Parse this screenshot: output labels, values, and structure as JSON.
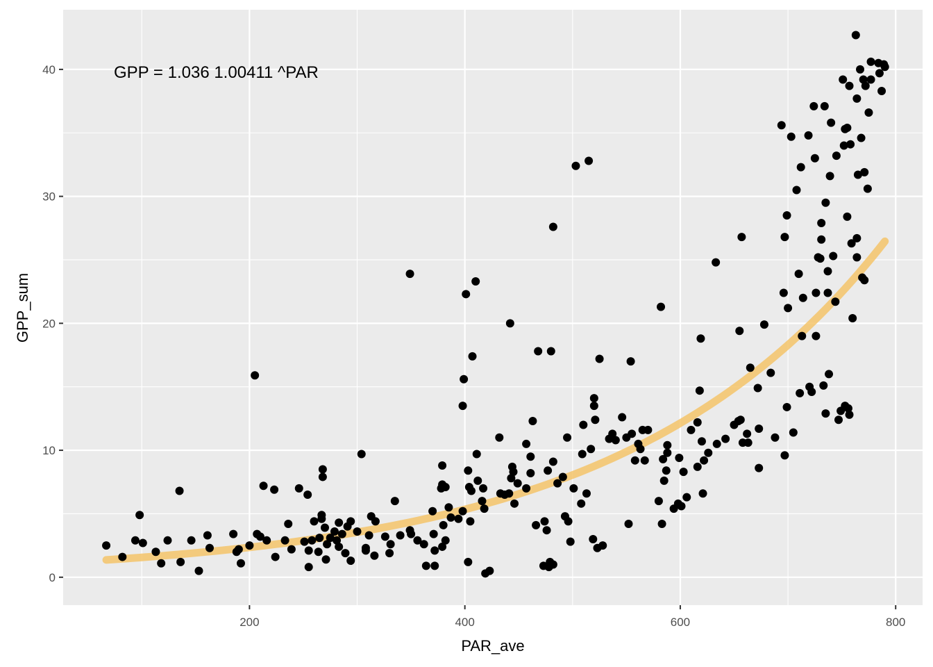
{
  "chart_data": {
    "type": "scatter",
    "xlabel": "PAR_ave",
    "ylabel": "GPP_sum",
    "annotation": "GPP =  1.036 1.00411 ^PAR",
    "xlim": [
      27,
      825
    ],
    "ylim": [
      -2.2,
      44.7
    ],
    "x_ticks": [
      200,
      400,
      600,
      800
    ],
    "x_tick_labels": [
      "200",
      "400",
      "600",
      "800"
    ],
    "y_ticks": [
      0,
      10,
      20,
      30,
      40
    ],
    "y_tick_labels": [
      "0",
      "10",
      "20",
      "30",
      "40"
    ],
    "grid": true,
    "colors": {
      "panel": "#ebebeb",
      "grid_major": "#ffffff",
      "points": "#000000",
      "fit_line": "#f5c46a"
    },
    "fit": {
      "a": 1.036,
      "b": 1.00411,
      "x_range": [
        67,
        790
      ]
    },
    "points": [
      [
        67,
        2.5
      ],
      [
        82,
        1.6
      ],
      [
        94,
        2.9
      ],
      [
        98,
        4.9
      ],
      [
        101,
        2.7
      ],
      [
        113,
        2
      ],
      [
        118,
        1.1
      ],
      [
        124,
        2.9
      ],
      [
        135,
        6.8
      ],
      [
        136,
        1.2
      ],
      [
        146,
        2.9
      ],
      [
        153,
        0.5
      ],
      [
        161,
        3.3
      ],
      [
        163,
        2.3
      ],
      [
        185,
        3.4
      ],
      [
        188,
        2
      ],
      [
        190,
        2.2
      ],
      [
        192,
        1.1
      ],
      [
        200,
        2.5
      ],
      [
        205,
        15.9
      ],
      [
        207,
        3.4
      ],
      [
        210,
        3.2
      ],
      [
        213,
        7.2
      ],
      [
        216,
        2.9
      ],
      [
        223,
        6.9
      ],
      [
        224,
        1.6
      ],
      [
        233,
        2.9
      ],
      [
        236,
        4.2
      ],
      [
        239,
        2.2
      ],
      [
        246,
        7
      ],
      [
        251,
        2.8
      ],
      [
        254,
        6.5
      ],
      [
        255,
        2.1
      ],
      [
        255,
        0.8
      ],
      [
        258,
        2.9
      ],
      [
        260,
        4.4
      ],
      [
        264,
        2
      ],
      [
        265,
        3.1
      ],
      [
        267,
        4.9
      ],
      [
        267,
        4.6
      ],
      [
        268,
        7.9
      ],
      [
        268,
        8.5
      ],
      [
        270,
        3.9
      ],
      [
        271,
        1.4
      ],
      [
        272,
        2.6
      ],
      [
        275,
        3.1
      ],
      [
        279,
        3.6
      ],
      [
        281,
        2.9
      ],
      [
        283,
        4.3
      ],
      [
        283,
        2.4
      ],
      [
        286,
        3.4
      ],
      [
        289,
        1.9
      ],
      [
        291,
        4
      ],
      [
        294,
        4.4
      ],
      [
        294,
        1.3
      ],
      [
        300,
        3.6
      ],
      [
        304,
        9.7
      ],
      [
        308,
        2.3
      ],
      [
        308,
        2.1
      ],
      [
        311,
        3.3
      ],
      [
        313,
        4.8
      ],
      [
        316,
        1.7
      ],
      [
        317,
        4.4
      ],
      [
        326,
        3.2
      ],
      [
        330,
        1.9
      ],
      [
        331,
        2.6
      ],
      [
        335,
        6
      ],
      [
        340,
        3.3
      ],
      [
        349,
        3.7
      ],
      [
        349,
        23.9
      ],
      [
        350,
        3.4
      ],
      [
        356,
        2.9
      ],
      [
        362,
        2.6
      ],
      [
        364,
        0.9
      ],
      [
        370,
        5.2
      ],
      [
        371,
        3.4
      ],
      [
        372,
        2.1
      ],
      [
        372,
        0.9
      ],
      [
        378,
        7
      ],
      [
        379,
        2.4
      ],
      [
        379,
        8.8
      ],
      [
        379,
        7.3
      ],
      [
        380,
        4.1
      ],
      [
        382,
        7.1
      ],
      [
        382,
        2.9
      ],
      [
        385,
        5.5
      ],
      [
        387,
        4.7
      ],
      [
        394,
        4.6
      ],
      [
        398,
        5.2
      ],
      [
        398,
        13.5
      ],
      [
        399,
        15.6
      ],
      [
        401,
        22.3
      ],
      [
        403,
        8.4
      ],
      [
        403,
        1.2
      ],
      [
        404,
        7.1
      ],
      [
        405,
        4.4
      ],
      [
        406,
        6.8
      ],
      [
        407,
        17.4
      ],
      [
        410,
        23.3
      ],
      [
        411,
        9.7
      ],
      [
        412,
        7.6
      ],
      [
        416,
        6
      ],
      [
        417,
        7
      ],
      [
        418,
        5.4
      ],
      [
        419,
        0.3
      ],
      [
        423,
        0.5
      ],
      [
        432,
        11
      ],
      [
        433,
        6.6
      ],
      [
        437,
        6.5
      ],
      [
        441,
        6.6
      ],
      [
        442,
        20
      ],
      [
        443,
        7.8
      ],
      [
        444,
        8.7
      ],
      [
        445,
        8.3
      ],
      [
        446,
        5.8
      ],
      [
        449,
        7.4
      ],
      [
        457,
        7
      ],
      [
        457,
        10.5
      ],
      [
        461,
        8.2
      ],
      [
        461,
        9.5
      ],
      [
        463,
        12.3
      ],
      [
        466,
        4.1
      ],
      [
        468,
        17.8
      ],
      [
        473,
        0.9
      ],
      [
        474,
        4.4
      ],
      [
        476,
        3.7
      ],
      [
        477,
        8.4
      ],
      [
        478,
        0.8
      ],
      [
        479,
        1.2
      ],
      [
        480,
        17.8
      ],
      [
        482,
        27.6
      ],
      [
        482,
        9.1
      ],
      [
        482,
        1
      ],
      [
        486,
        7.4
      ],
      [
        491,
        7.9
      ],
      [
        493,
        4.8
      ],
      [
        495,
        11
      ],
      [
        496,
        4.4
      ],
      [
        498,
        2.8
      ],
      [
        501,
        7
      ],
      [
        503,
        32.4
      ],
      [
        508,
        5.8
      ],
      [
        509,
        9.7
      ],
      [
        510,
        12
      ],
      [
        513,
        6.6
      ],
      [
        515,
        32.8
      ],
      [
        517,
        10.1
      ],
      [
        519,
        3
      ],
      [
        520,
        13.5
      ],
      [
        520,
        14.1
      ],
      [
        521,
        12.4
      ],
      [
        523,
        2.3
      ],
      [
        525,
        17.2
      ],
      [
        528,
        2.5
      ],
      [
        534,
        10.9
      ],
      [
        537,
        11.3
      ],
      [
        540,
        10.8
      ],
      [
        546,
        12.6
      ],
      [
        550,
        11
      ],
      [
        552,
        4.2
      ],
      [
        554,
        17
      ],
      [
        555,
        11.3
      ],
      [
        558,
        9.2
      ],
      [
        561,
        10.5
      ],
      [
        563,
        10.1
      ],
      [
        565,
        11.6
      ],
      [
        567,
        9.2
      ],
      [
        570,
        11.6
      ],
      [
        580,
        6
      ],
      [
        582,
        21.3
      ],
      [
        583,
        4.2
      ],
      [
        584,
        9.3
      ],
      [
        585,
        7.6
      ],
      [
        587,
        8.4
      ],
      [
        588,
        9.8
      ],
      [
        588,
        10.4
      ],
      [
        594,
        5.4
      ],
      [
        598,
        5.8
      ],
      [
        599,
        9.4
      ],
      [
        601,
        5.6
      ],
      [
        603,
        8.3
      ],
      [
        606,
        6.3
      ],
      [
        610,
        11.6
      ],
      [
        616,
        12.2
      ],
      [
        616,
        8.7
      ],
      [
        618,
        14.7
      ],
      [
        619,
        18.8
      ],
      [
        620,
        10.7
      ],
      [
        621,
        6.6
      ],
      [
        622,
        9.2
      ],
      [
        626,
        9.8
      ],
      [
        633,
        24.8
      ],
      [
        634,
        10.5
      ],
      [
        642,
        10.9
      ],
      [
        650,
        12
      ],
      [
        654,
        12.3
      ],
      [
        655,
        19.4
      ],
      [
        656,
        12.4
      ],
      [
        657,
        26.8
      ],
      [
        658,
        10.6
      ],
      [
        662,
        11.3
      ],
      [
        663,
        10.6
      ],
      [
        665,
        16.5
      ],
      [
        672,
        14.9
      ],
      [
        673,
        11.7
      ],
      [
        673,
        8.6
      ],
      [
        678,
        19.9
      ],
      [
        684,
        16.1
      ],
      [
        688,
        11
      ],
      [
        694,
        35.6
      ],
      [
        696,
        22.4
      ],
      [
        697,
        26.8
      ],
      [
        697,
        9.6
      ],
      [
        699,
        28.5
      ],
      [
        699,
        13.4
      ],
      [
        700,
        21.2
      ],
      [
        703,
        34.7
      ],
      [
        705,
        11.4
      ],
      [
        708,
        30.5
      ],
      [
        710,
        23.9
      ],
      [
        711,
        14.5
      ],
      [
        712,
        32.3
      ],
      [
        713,
        19
      ],
      [
        714,
        22
      ],
      [
        719,
        34.8
      ],
      [
        720,
        15
      ],
      [
        722,
        14.6
      ],
      [
        724,
        37.1
      ],
      [
        725,
        33
      ],
      [
        726,
        22.4
      ],
      [
        726,
        19
      ],
      [
        728,
        25.2
      ],
      [
        730,
        25.1
      ],
      [
        731,
        27.9
      ],
      [
        731,
        26.6
      ],
      [
        733,
        15.1
      ],
      [
        734,
        37.1
      ],
      [
        735,
        29.5
      ],
      [
        735,
        12.9
      ],
      [
        737,
        24.1
      ],
      [
        737,
        22.4
      ],
      [
        738,
        16
      ],
      [
        739,
        31.6
      ],
      [
        740,
        35.8
      ],
      [
        742,
        25.3
      ],
      [
        744,
        21.7
      ],
      [
        745,
        33.2
      ],
      [
        747,
        12.4
      ],
      [
        749,
        13.1
      ],
      [
        751,
        39.2
      ],
      [
        752,
        34
      ],
      [
        753,
        35.3
      ],
      [
        753,
        13.5
      ],
      [
        755,
        28.4
      ],
      [
        755,
        35.4
      ],
      [
        756,
        13.3
      ],
      [
        757,
        38.7
      ],
      [
        757,
        12.8
      ],
      [
        758,
        34.1
      ],
      [
        759,
        26.3
      ],
      [
        760,
        20.4
      ],
      [
        763,
        42.7
      ],
      [
        764,
        25.2
      ],
      [
        764,
        26.7
      ],
      [
        764,
        37.7
      ],
      [
        765,
        31.7
      ],
      [
        767,
        40
      ],
      [
        768,
        34.6
      ],
      [
        769,
        23.6
      ],
      [
        770,
        39.2
      ],
      [
        771,
        31.9
      ],
      [
        771,
        23.4
      ],
      [
        772,
        38.7
      ],
      [
        774,
        30.6
      ],
      [
        775,
        36.6
      ],
      [
        777,
        39.2
      ],
      [
        777,
        40.6
      ],
      [
        784,
        40.5
      ],
      [
        785,
        39.7
      ],
      [
        787,
        38.3
      ],
      [
        789,
        40.4
      ],
      [
        790,
        40.2
      ]
    ]
  }
}
